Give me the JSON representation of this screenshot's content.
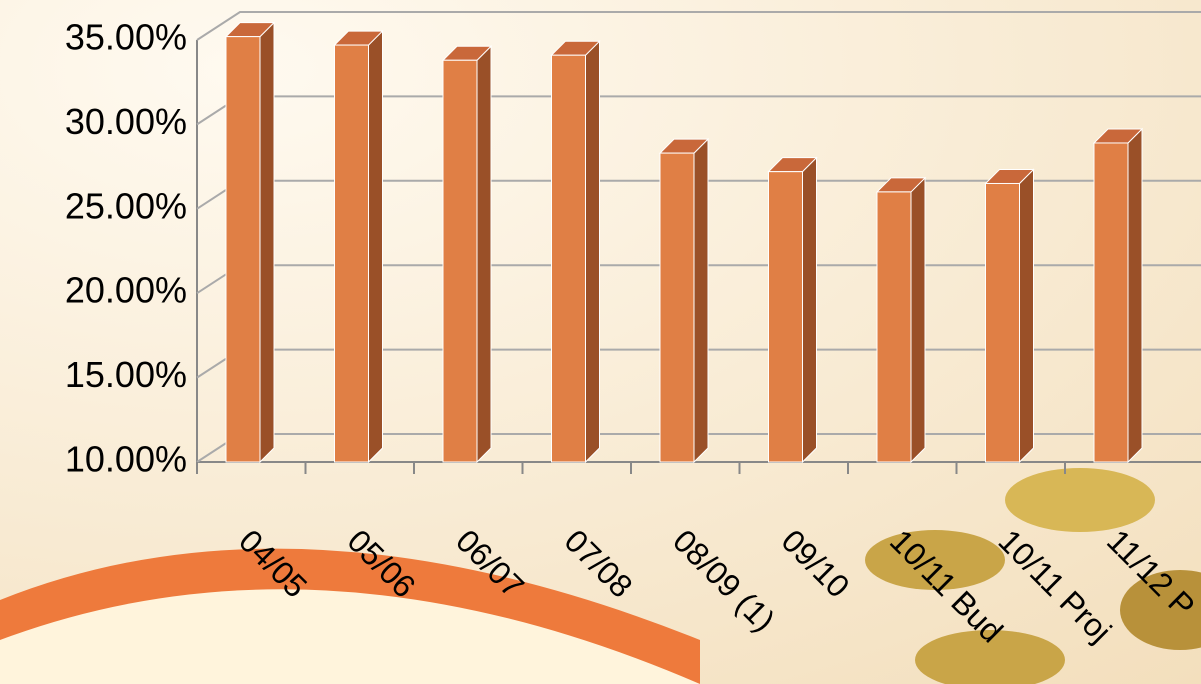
{
  "chart_data": {
    "type": "bar",
    "categories": [
      "04/05",
      "05/06",
      "06/07",
      "07/08",
      "08/09 (1)",
      "09/10",
      "10/11 Bud",
      "10/11 Proj",
      "11/12 P"
    ],
    "values": [
      35.2,
      34.7,
      33.8,
      34.1,
      28.3,
      27.2,
      26.0,
      26.5,
      28.9
    ],
    "color": "#e07f45",
    "ylim": [
      10,
      35
    ],
    "yticks": [
      {
        "value": 10,
        "label": "10.00%"
      },
      {
        "value": 15,
        "label": "15.00%"
      },
      {
        "value": 20,
        "label": "20.00%"
      },
      {
        "value": 25,
        "label": "25.00%"
      },
      {
        "value": 30,
        "label": "30.00%"
      },
      {
        "value": 35,
        "label": "35.00%"
      }
    ],
    "grid": true
  }
}
